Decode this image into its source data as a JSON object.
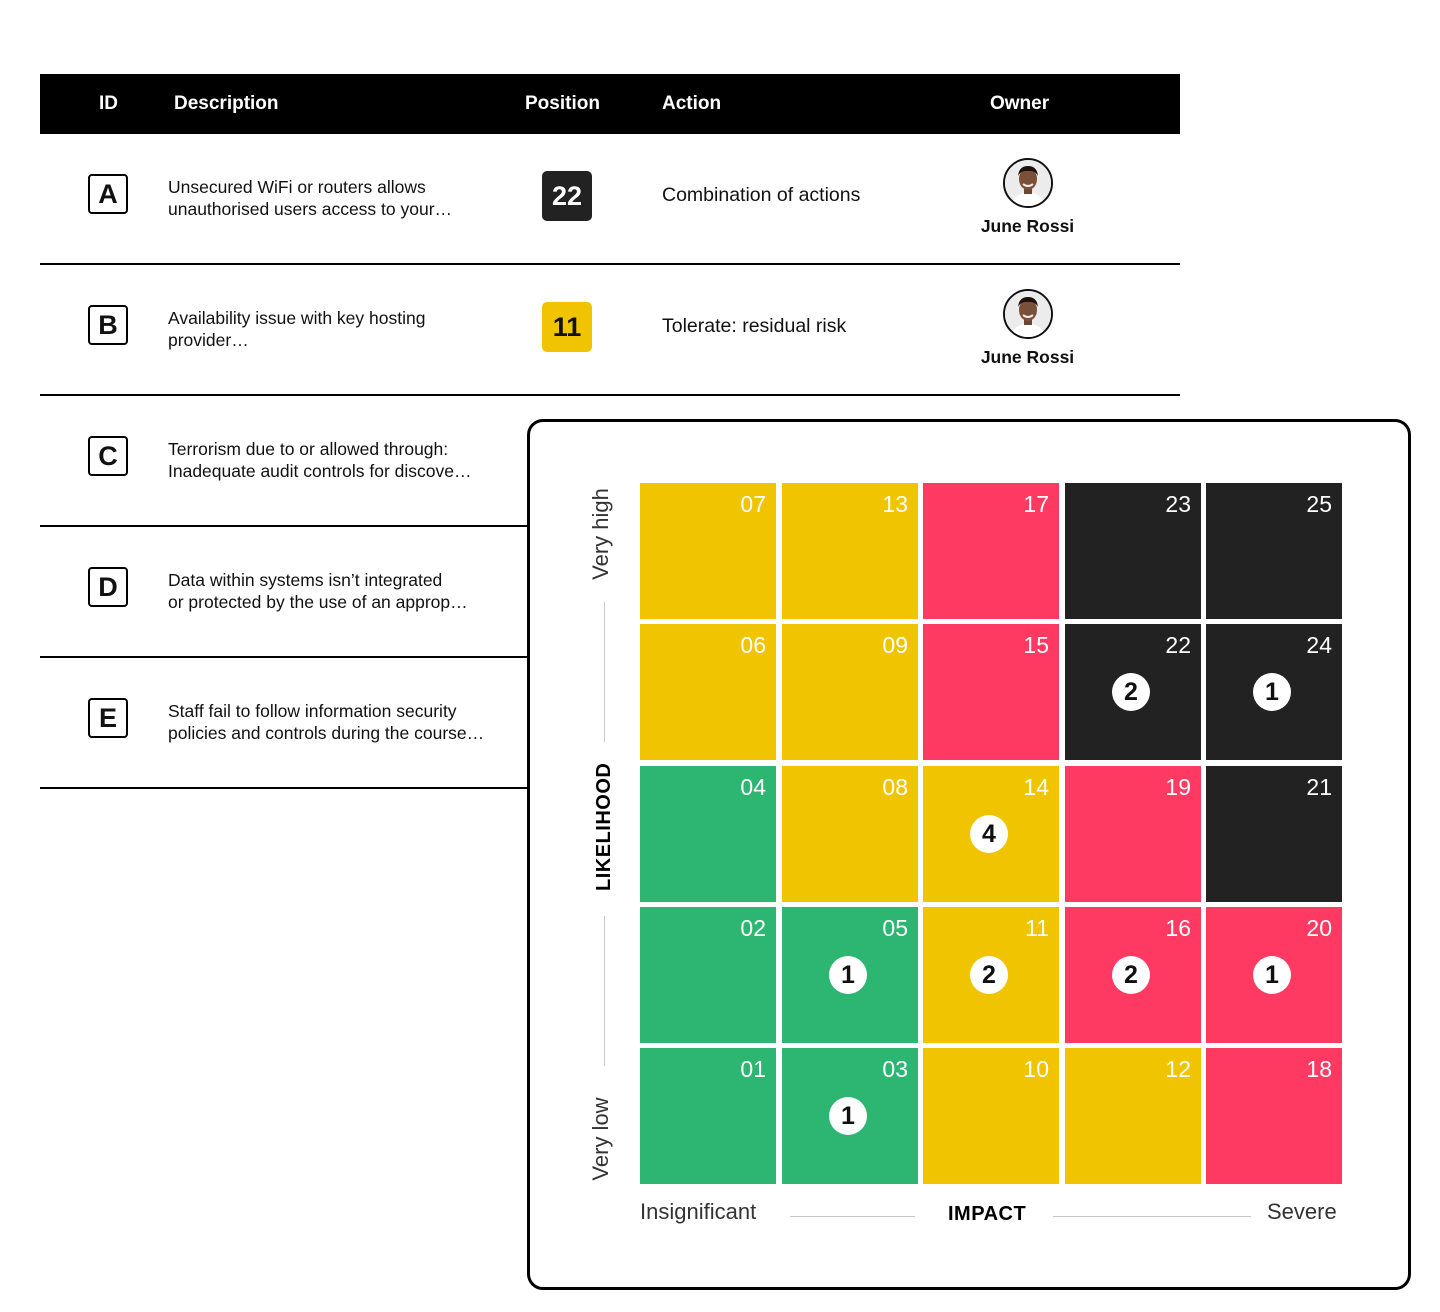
{
  "table": {
    "headers": {
      "id": "ID",
      "description": "Description",
      "position": "Position",
      "action": "Action",
      "owner": "Owner"
    },
    "rows": [
      {
        "id": "A",
        "description": "Unsecured WiFi or routers allows\nunauthorised users access to your…",
        "position": "22",
        "position_color": "#222222",
        "action": "Combination of actions",
        "owner": "June Rossi"
      },
      {
        "id": "B",
        "description": "Availability issue with key hosting\nprovider…",
        "position": "11",
        "position_color": "#f0c400",
        "action": "Tolerate: residual risk",
        "owner": "June Rossi"
      },
      {
        "id": "C",
        "description": "Terrorism due to or allowed through:\nInadequate audit controls for discove…"
      },
      {
        "id": "D",
        "description": "Data within systems isn’t integrated\nor protected by the use of an approp…"
      },
      {
        "id": "E",
        "description": "Staff fail to follow information security\npolicies and controls during the course…"
      }
    ]
  },
  "matrix": {
    "likelihood_title": "LIKELIHOOD",
    "likelihood_high": "Very high",
    "likelihood_low": "Very low",
    "impact_title": "IMPACT",
    "impact_low": "Insignificant",
    "impact_high": "Severe",
    "colors": {
      "green": "#2db672",
      "yellow": "#f0c400",
      "red": "#fe3962",
      "black": "#222222"
    },
    "rows": [
      [
        {
          "n": "07",
          "c": "yellow"
        },
        {
          "n": "13",
          "c": "yellow"
        },
        {
          "n": "17",
          "c": "red"
        },
        {
          "n": "23",
          "c": "black"
        },
        {
          "n": "25",
          "c": "black"
        }
      ],
      [
        {
          "n": "06",
          "c": "yellow"
        },
        {
          "n": "09",
          "c": "yellow"
        },
        {
          "n": "15",
          "c": "red"
        },
        {
          "n": "22",
          "c": "black",
          "count": "2"
        },
        {
          "n": "24",
          "c": "black",
          "count": "1"
        }
      ],
      [
        {
          "n": "04",
          "c": "green"
        },
        {
          "n": "08",
          "c": "yellow"
        },
        {
          "n": "14",
          "c": "yellow",
          "count": "4"
        },
        {
          "n": "19",
          "c": "red"
        },
        {
          "n": "21",
          "c": "black"
        }
      ],
      [
        {
          "n": "02",
          "c": "green"
        },
        {
          "n": "05",
          "c": "green",
          "count": "1"
        },
        {
          "n": "11",
          "c": "yellow",
          "count": "2"
        },
        {
          "n": "16",
          "c": "red",
          "count": "2"
        },
        {
          "n": "20",
          "c": "red",
          "count": "1"
        }
      ],
      [
        {
          "n": "01",
          "c": "green"
        },
        {
          "n": "03",
          "c": "green",
          "count": "1"
        },
        {
          "n": "10",
          "c": "yellow"
        },
        {
          "n": "12",
          "c": "yellow"
        },
        {
          "n": "18",
          "c": "red"
        }
      ]
    ]
  }
}
